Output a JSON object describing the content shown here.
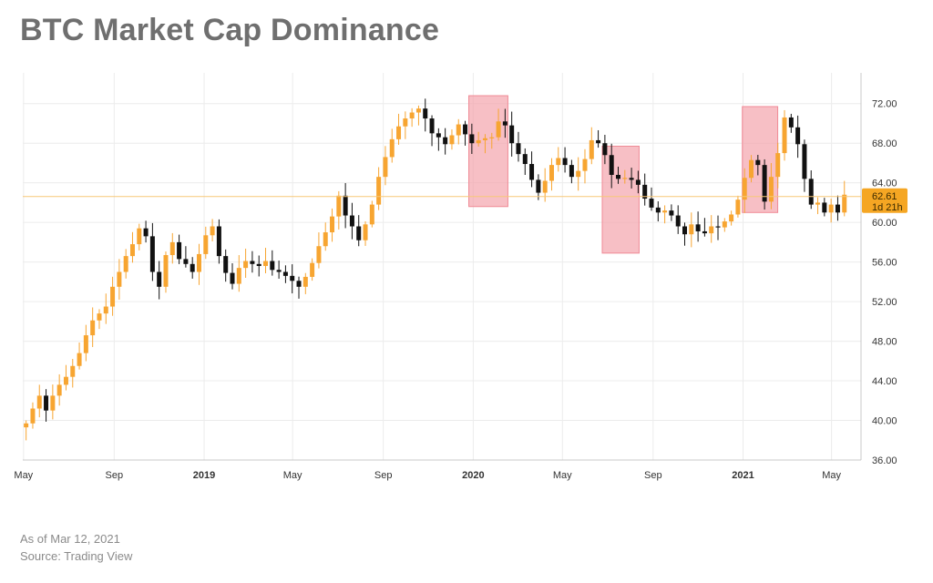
{
  "title": "BTC Market Cap Dominance",
  "footnote": {
    "as_of": "As of Mar 12, 2021",
    "source": "Source: Trading View"
  },
  "colors": {
    "up": "#f7a531",
    "down": "#111111",
    "highlight": "#f4a4ad",
    "grid": "#ececec",
    "price_line": "#f7c878",
    "price_tag": "#f5a623"
  },
  "chart_data": {
    "type": "candlestick",
    "title": "BTC Market Cap Dominance",
    "ylim": [
      36,
      74
    ],
    "y_ticks": [
      "36.00",
      "40.00",
      "44.00",
      "48.00",
      "52.00",
      "56.00",
      "60.00",
      "64.00",
      "68.00",
      "72.00"
    ],
    "x_ticks": [
      {
        "label": "May",
        "date": "2018-05-01",
        "bold": false
      },
      {
        "label": "Sep",
        "date": "2018-09-01",
        "bold": false
      },
      {
        "label": "2019",
        "date": "2019-01-01",
        "bold": true
      },
      {
        "label": "May",
        "date": "2019-05-01",
        "bold": false
      },
      {
        "label": "Sep",
        "date": "2019-09-01",
        "bold": false
      },
      {
        "label": "2020",
        "date": "2020-01-01",
        "bold": true
      },
      {
        "label": "May",
        "date": "2020-05-01",
        "bold": false
      },
      {
        "label": "Sep",
        "date": "2020-09-01",
        "bold": false
      },
      {
        "label": "2021",
        "date": "2021-01-01",
        "bold": true
      },
      {
        "label": "May",
        "date": "2021-05-01",
        "bold": false
      }
    ],
    "x_range": [
      "2018-04-30",
      "2021-06-10"
    ],
    "last_price": {
      "value": 62.61,
      "label": "62.61",
      "sublabel": "1d 21h"
    },
    "highlights": [
      {
        "start": "2019-12-26",
        "end": "2020-02-17",
        "y_low": 61.6,
        "y_high": 72.8
      },
      {
        "start": "2020-06-24",
        "end": "2020-08-13",
        "y_low": 56.9,
        "y_high": 67.7
      },
      {
        "start": "2020-12-31",
        "end": "2021-02-17",
        "y_low": 61.0,
        "y_high": 71.7
      }
    ],
    "weekly_closes": [
      39.7,
      41.2,
      42.5,
      41.0,
      42.5,
      43.6,
      44.4,
      45.5,
      46.8,
      48.6,
      50.1,
      50.8,
      51.5,
      53.5,
      55.0,
      56.6,
      57.8,
      59.4,
      58.6,
      55.0,
      53.5,
      56.7,
      58.0,
      56.3,
      55.8,
      55.0,
      56.8,
      58.7,
      59.6,
      56.6,
      54.9,
      53.8,
      55.4,
      56.1,
      55.8,
      55.6,
      56.1,
      55.2,
      55.0,
      54.6,
      54.1,
      53.5,
      54.5,
      55.9,
      57.6,
      59.0,
      60.6,
      62.7,
      60.7,
      59.6,
      58.2,
      59.8,
      61.8,
      64.6,
      66.6,
      68.4,
      69.7,
      70.5,
      71.1,
      71.5,
      70.5,
      69.0,
      68.6,
      67.9,
      68.8,
      69.9,
      68.9,
      68.0,
      68.3,
      68.5,
      68.6,
      70.2,
      69.8,
      68.0,
      66.9,
      65.9,
      64.3,
      63.0,
      64.2,
      65.8,
      66.5,
      65.8,
      64.6,
      65.2,
      66.4,
      68.3,
      68.0,
      66.8,
      64.8,
      64.4,
      64.5,
      64.3,
      63.8,
      62.4,
      61.5,
      61.0,
      61.2,
      60.7,
      59.6,
      58.8,
      59.8,
      59.1,
      58.9,
      59.6,
      59.5,
      60.1,
      60.8,
      62.3,
      64.5,
      66.3,
      65.8,
      62.1,
      64.6,
      67.0,
      70.6,
      69.6,
      67.9,
      64.4,
      61.8,
      62.0,
      61.0,
      61.8,
      61.0,
      62.8
    ]
  }
}
